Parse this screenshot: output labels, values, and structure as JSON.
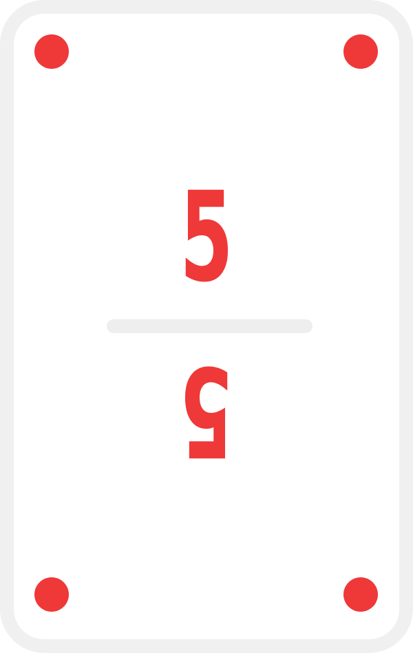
{
  "card": {
    "value_top": "5",
    "value_bottom": "5",
    "accent_color": "#ef3838",
    "border_color": "#f0f0f0",
    "divider_color": "#eeeeee",
    "corner_pips": [
      "top-left",
      "top-right",
      "bottom-left",
      "bottom-right"
    ]
  }
}
